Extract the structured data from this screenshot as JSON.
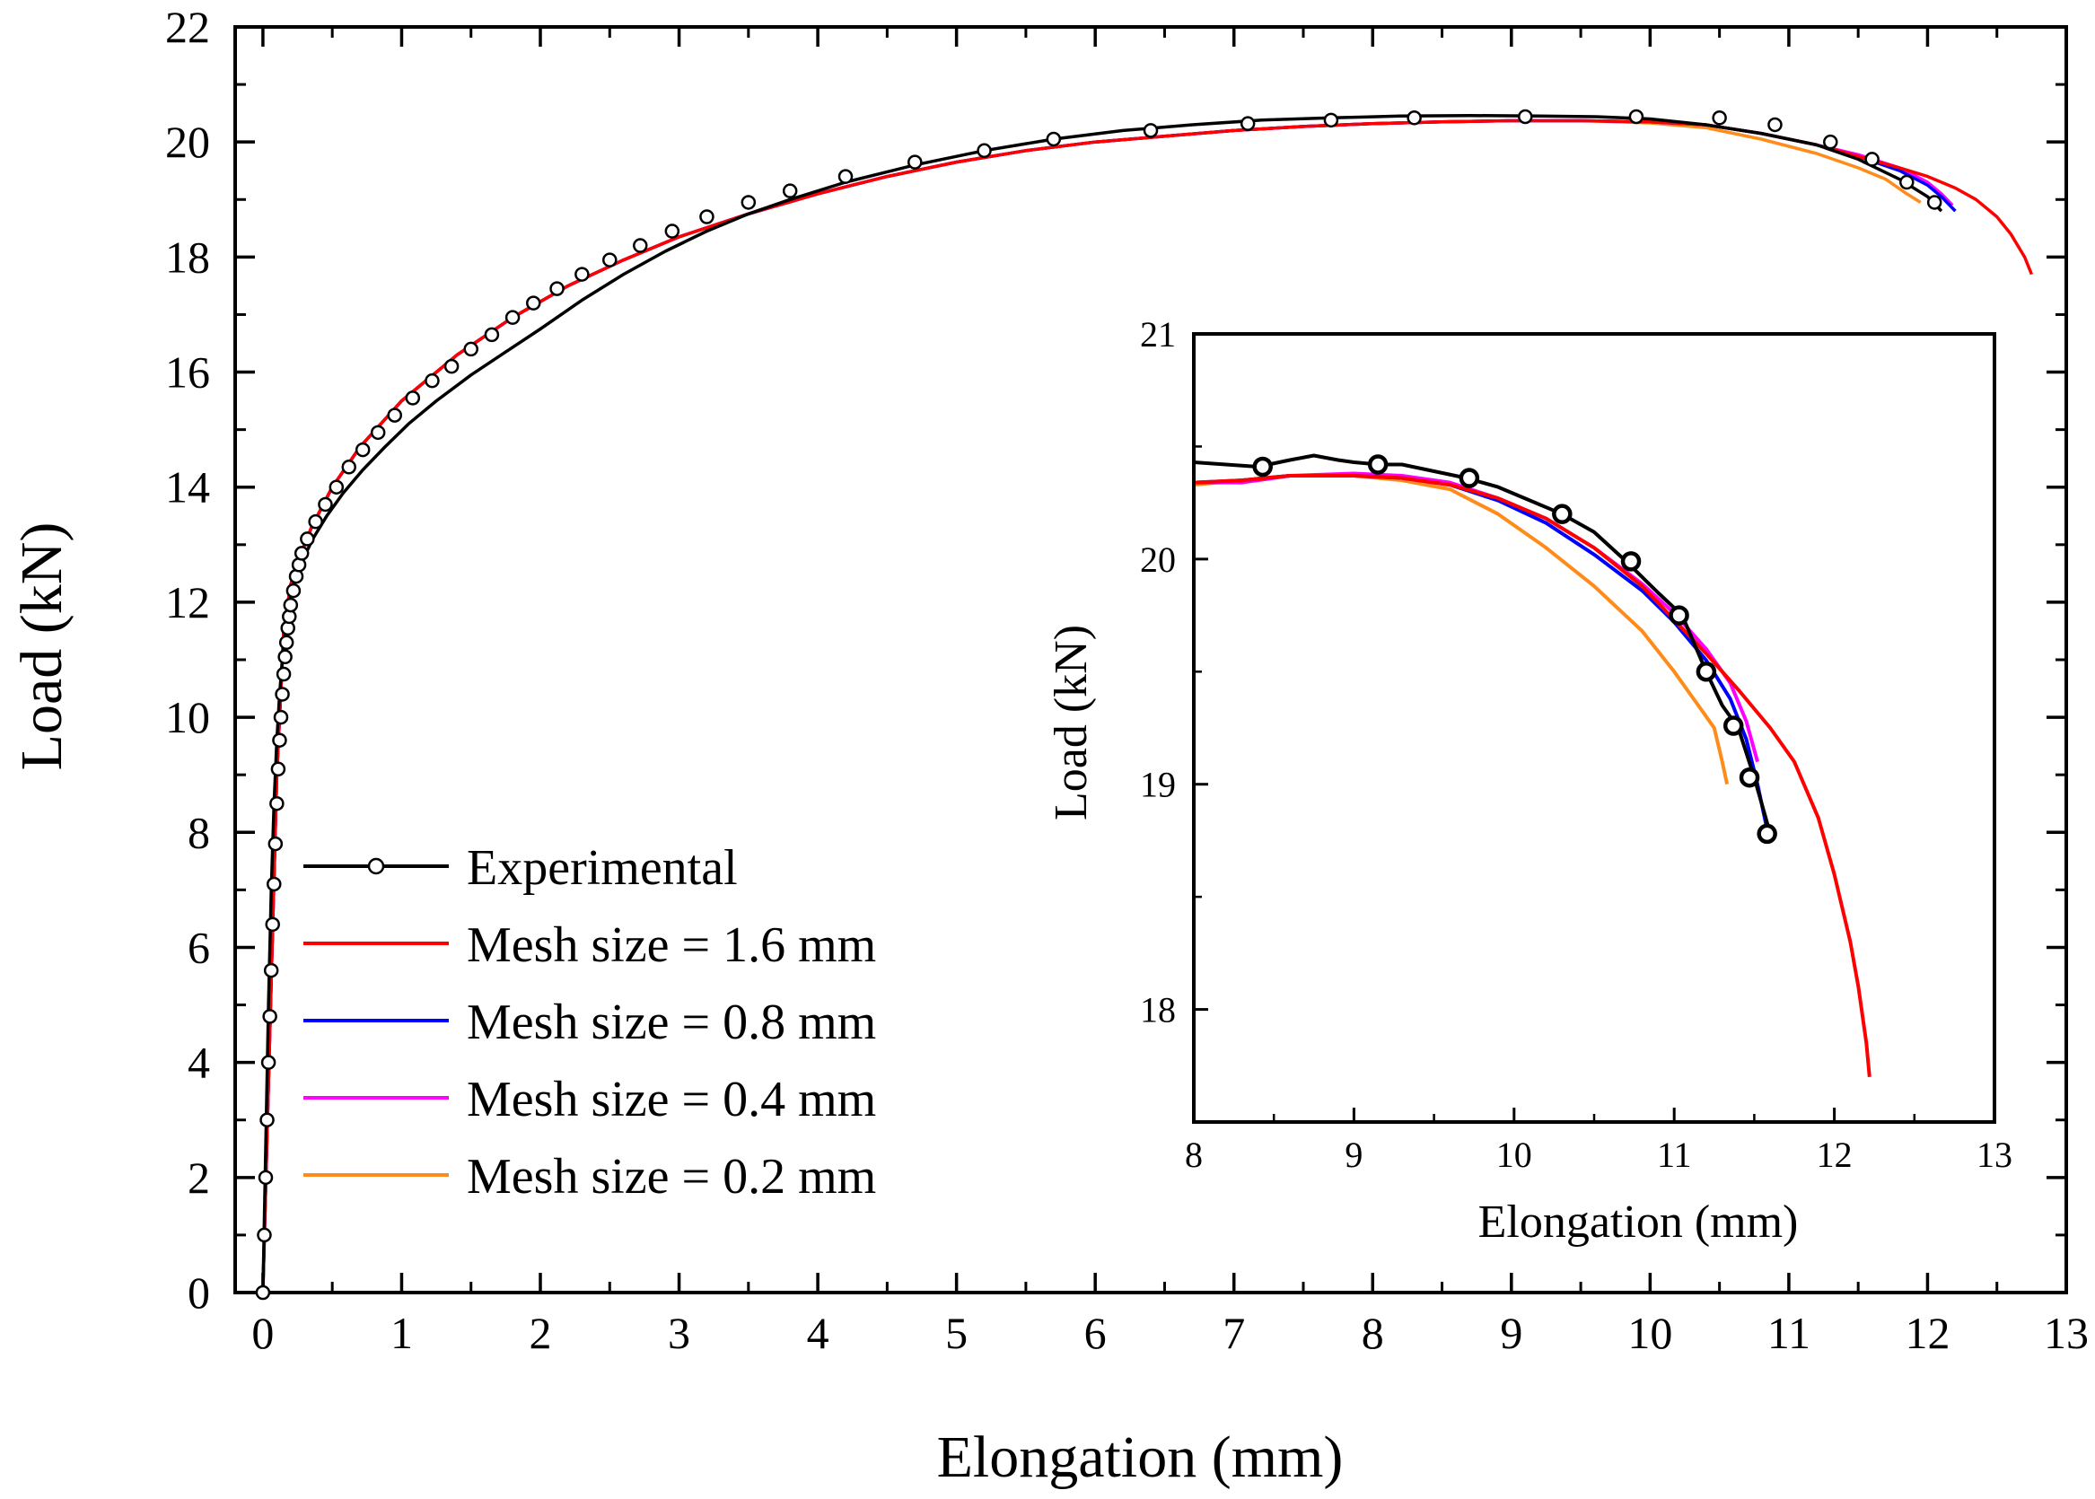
{
  "chart_data": [
    {
      "id": "main",
      "type": "line",
      "xlabel": "Elongation (mm)",
      "ylabel": "Load (kN)",
      "xlim": [
        -0.2,
        13
      ],
      "ylim": [
        0,
        22
      ],
      "xticks": [
        0,
        1,
        2,
        3,
        4,
        5,
        6,
        7,
        8,
        9,
        10,
        11,
        12,
        13
      ],
      "yticks": [
        0,
        2,
        4,
        6,
        8,
        10,
        12,
        14,
        16,
        18,
        20,
        22
      ],
      "legend_position": "bottom-left",
      "series": [
        {
          "name": "Experimental",
          "color": "#000000",
          "marker": "open-circle",
          "x": [
            0.0,
            0.02,
            0.04,
            0.06,
            0.08,
            0.1,
            0.12,
            0.14,
            0.16,
            0.18,
            0.22,
            0.28,
            0.36,
            0.46,
            0.58,
            0.72,
            0.88,
            1.05,
            1.25,
            1.5,
            1.75,
            2.0,
            2.3,
            2.6,
            2.9,
            3.2,
            3.5,
            3.8,
            4.2,
            4.7,
            5.2,
            5.7,
            6.2,
            6.7,
            7.2,
            7.7,
            8.2,
            8.7,
            9.2,
            9.6,
            10.0,
            10.4,
            10.8,
            11.2,
            11.5,
            11.8,
            12.0,
            12.1
          ],
          "y": [
            0.0,
            2.5,
            5.0,
            7.0,
            8.5,
            9.6,
            10.4,
            11.0,
            11.5,
            11.9,
            12.3,
            12.7,
            13.1,
            13.5,
            13.9,
            14.3,
            14.7,
            15.1,
            15.5,
            15.95,
            16.35,
            16.75,
            17.25,
            17.7,
            18.1,
            18.45,
            18.75,
            19.0,
            19.3,
            19.6,
            19.85,
            20.05,
            20.2,
            20.3,
            20.38,
            20.42,
            20.45,
            20.46,
            20.45,
            20.44,
            20.4,
            20.3,
            20.15,
            19.95,
            19.7,
            19.35,
            19.05,
            18.8
          ],
          "marker_x": [
            0.0,
            0.01,
            0.02,
            0.03,
            0.04,
            0.05,
            0.06,
            0.07,
            0.08,
            0.09,
            0.1,
            0.11,
            0.12,
            0.13,
            0.14,
            0.15,
            0.16,
            0.17,
            0.18,
            0.19,
            0.2,
            0.22,
            0.24,
            0.26,
            0.28,
            0.32,
            0.38,
            0.45,
            0.53,
            0.62,
            0.72,
            0.83,
            0.95,
            1.08,
            1.22,
            1.36,
            1.5,
            1.65,
            1.8,
            1.95,
            2.12,
            2.3,
            2.5,
            2.72,
            2.95,
            3.2,
            3.5,
            3.8,
            4.2,
            4.7,
            5.2,
            5.7,
            6.4,
            7.1,
            7.7,
            8.3,
            9.1,
            9.9,
            10.5,
            10.9,
            11.3,
            11.6,
            11.85,
            12.05
          ],
          "marker_y": [
            0.0,
            1.0,
            2.0,
            3.0,
            4.0,
            4.8,
            5.6,
            6.4,
            7.1,
            7.8,
            8.5,
            9.1,
            9.6,
            10.0,
            10.4,
            10.75,
            11.05,
            11.3,
            11.55,
            11.75,
            11.95,
            12.2,
            12.45,
            12.65,
            12.85,
            13.1,
            13.4,
            13.7,
            14.0,
            14.35,
            14.65,
            14.95,
            15.25,
            15.55,
            15.85,
            16.1,
            16.4,
            16.65,
            16.95,
            17.2,
            17.45,
            17.7,
            17.95,
            18.2,
            18.45,
            18.7,
            18.95,
            19.15,
            19.4,
            19.65,
            19.85,
            20.05,
            20.2,
            20.32,
            20.38,
            20.42,
            20.44,
            20.44,
            20.42,
            20.3,
            20.0,
            19.7,
            19.3,
            18.95
          ]
        },
        {
          "name": "Mesh size = 1.6 mm",
          "color": "#ff0000",
          "x": [
            0.0,
            0.05,
            0.1,
            0.15,
            0.2,
            0.25,
            0.35,
            0.5,
            0.7,
            1.0,
            1.4,
            1.8,
            2.2,
            2.6,
            3.0,
            3.5,
            4.0,
            4.5,
            5.0,
            5.5,
            6.0,
            6.5,
            7.0,
            7.5,
            8.0,
            8.5,
            9.0,
            9.5,
            10.0,
            10.4,
            10.8,
            11.2,
            11.5,
            11.8,
            12.0,
            12.2,
            12.35,
            12.5,
            12.6,
            12.7,
            12.75
          ],
          "y": [
            0.0,
            4.5,
            9.0,
            11.5,
            12.3,
            12.7,
            13.3,
            14.0,
            14.7,
            15.5,
            16.3,
            16.95,
            17.5,
            17.95,
            18.35,
            18.75,
            19.1,
            19.4,
            19.65,
            19.85,
            20.0,
            20.1,
            20.2,
            20.27,
            20.32,
            20.35,
            20.37,
            20.37,
            20.35,
            20.3,
            20.15,
            19.95,
            19.75,
            19.55,
            19.4,
            19.2,
            19.0,
            18.7,
            18.4,
            18.0,
            17.7
          ]
        },
        {
          "name": "Mesh size = 0.8 mm",
          "color": "#0000ff",
          "x": [
            0.0,
            0.05,
            0.1,
            0.15,
            0.2,
            0.25,
            0.35,
            0.5,
            0.7,
            1.0,
            1.4,
            1.8,
            2.2,
            2.6,
            3.0,
            3.5,
            4.0,
            4.5,
            5.0,
            5.5,
            6.0,
            6.5,
            7.0,
            7.5,
            8.0,
            8.5,
            9.0,
            9.5,
            10.0,
            10.4,
            10.8,
            11.2,
            11.5,
            11.8,
            12.0,
            12.1,
            12.2
          ],
          "y": [
            0.0,
            4.5,
            9.0,
            11.5,
            12.3,
            12.7,
            13.3,
            14.0,
            14.7,
            15.5,
            16.3,
            16.95,
            17.5,
            17.95,
            18.35,
            18.75,
            19.1,
            19.4,
            19.65,
            19.85,
            20.0,
            20.1,
            20.2,
            20.27,
            20.32,
            20.35,
            20.37,
            20.37,
            20.35,
            20.3,
            20.15,
            19.95,
            19.75,
            19.5,
            19.25,
            19.05,
            18.8
          ]
        },
        {
          "name": "Mesh size = 0.4 mm",
          "color": "#ff00ff",
          "x": [
            0.0,
            0.05,
            0.1,
            0.15,
            0.2,
            0.25,
            0.35,
            0.5,
            0.7,
            1.0,
            1.4,
            1.8,
            2.2,
            2.6,
            3.0,
            3.5,
            4.0,
            4.5,
            5.0,
            5.5,
            6.0,
            6.5,
            7.0,
            7.5,
            8.0,
            8.5,
            9.0,
            9.5,
            10.0,
            10.4,
            10.8,
            11.2,
            11.5,
            11.8,
            12.0,
            12.1,
            12.18
          ],
          "y": [
            0.0,
            4.5,
            9.0,
            11.5,
            12.3,
            12.7,
            13.3,
            14.0,
            14.7,
            15.5,
            16.3,
            16.95,
            17.5,
            17.95,
            18.35,
            18.75,
            19.1,
            19.4,
            19.65,
            19.85,
            20.0,
            20.1,
            20.2,
            20.27,
            20.32,
            20.35,
            20.37,
            20.37,
            20.35,
            20.3,
            20.15,
            19.95,
            19.78,
            19.55,
            19.3,
            19.1,
            18.9
          ]
        },
        {
          "name": "Mesh size = 0.2 mm",
          "color": "#ff8c1a",
          "x": [
            0.0,
            0.05,
            0.1,
            0.15,
            0.2,
            0.25,
            0.35,
            0.5,
            0.7,
            1.0,
            1.4,
            1.8,
            2.2,
            2.6,
            3.0,
            3.5,
            4.0,
            4.5,
            5.0,
            5.5,
            6.0,
            6.5,
            7.0,
            7.5,
            8.0,
            8.5,
            9.0,
            9.5,
            10.0,
            10.4,
            10.8,
            11.2,
            11.5,
            11.7,
            11.85,
            11.95
          ],
          "y": [
            0.0,
            4.5,
            9.0,
            11.5,
            12.3,
            12.7,
            13.3,
            14.0,
            14.7,
            15.5,
            16.3,
            16.95,
            17.5,
            17.95,
            18.35,
            18.75,
            19.1,
            19.4,
            19.65,
            19.85,
            20.0,
            20.1,
            20.2,
            20.27,
            20.32,
            20.35,
            20.37,
            20.37,
            20.33,
            20.25,
            20.05,
            19.8,
            19.55,
            19.35,
            19.1,
            18.95
          ]
        }
      ]
    },
    {
      "id": "inset",
      "type": "line",
      "xlabel": "Elongation (mm)",
      "ylabel": "Load (kN)",
      "xlim": [
        8,
        13
      ],
      "ylim": [
        17.5,
        21
      ],
      "xticks": [
        8,
        9,
        10,
        11,
        12,
        13
      ],
      "yticks": [
        18,
        19,
        20,
        21
      ],
      "series": [
        {
          "name": "Experimental",
          "color": "#000000",
          "marker": "open-circle",
          "x": [
            8.0,
            8.2,
            8.4,
            8.6,
            8.75,
            8.9,
            9.0,
            9.15,
            9.3,
            9.5,
            9.7,
            9.9,
            10.1,
            10.3,
            10.5,
            10.7,
            10.9,
            11.05,
            11.2,
            11.3,
            11.4,
            11.5,
            11.6
          ],
          "y": [
            20.43,
            20.42,
            20.41,
            20.44,
            20.46,
            20.44,
            20.43,
            20.42,
            20.42,
            20.39,
            20.36,
            20.32,
            20.26,
            20.2,
            20.12,
            19.99,
            19.85,
            19.75,
            19.5,
            19.35,
            19.25,
            19.03,
            18.78
          ],
          "marker_x": [
            8.43,
            9.15,
            9.72,
            10.3,
            10.73,
            11.03,
            11.2,
            11.37,
            11.47,
            11.58
          ],
          "marker_y": [
            20.41,
            20.42,
            20.36,
            20.2,
            19.99,
            19.75,
            19.5,
            19.26,
            19.03,
            18.78
          ]
        },
        {
          "name": "Mesh size = 1.6 mm",
          "color": "#ff0000",
          "x": [
            8.0,
            8.3,
            8.6,
            9.0,
            9.3,
            9.6,
            9.9,
            10.2,
            10.5,
            10.8,
            11.0,
            11.2,
            11.4,
            11.6,
            11.75,
            11.9,
            12.0,
            12.1,
            12.15,
            12.2,
            12.22
          ],
          "y": [
            20.34,
            20.35,
            20.37,
            20.37,
            20.36,
            20.33,
            20.27,
            20.18,
            20.05,
            19.88,
            19.73,
            19.58,
            19.42,
            19.25,
            19.1,
            18.85,
            18.6,
            18.3,
            18.1,
            17.85,
            17.7
          ],
          "jitter_note": ""
        },
        {
          "name": "Mesh size = 0.8 mm",
          "color": "#0000ff",
          "x": [
            8.0,
            8.3,
            8.6,
            9.0,
            9.3,
            9.6,
            9.9,
            10.2,
            10.5,
            10.8,
            11.0,
            11.2,
            11.35,
            11.45,
            11.52,
            11.58
          ],
          "y": [
            20.34,
            20.35,
            20.37,
            20.37,
            20.36,
            20.33,
            20.26,
            20.16,
            20.02,
            19.86,
            19.72,
            19.55,
            19.38,
            19.2,
            19.0,
            18.8
          ]
        },
        {
          "name": "Mesh size = 0.4 mm",
          "color": "#ff00ff",
          "x": [
            8.0,
            8.3,
            8.6,
            9.0,
            9.3,
            9.6,
            9.9,
            10.2,
            10.5,
            10.8,
            11.0,
            11.2,
            11.35,
            11.45,
            11.52
          ],
          "y": [
            20.34,
            20.34,
            20.37,
            20.38,
            20.37,
            20.34,
            20.27,
            20.18,
            20.05,
            19.89,
            19.76,
            19.6,
            19.45,
            19.28,
            19.1
          ]
        },
        {
          "name": "Mesh size = 0.2 mm",
          "color": "#ff8c1a",
          "x": [
            8.0,
            8.3,
            8.6,
            9.0,
            9.3,
            9.6,
            9.9,
            10.2,
            10.5,
            10.8,
            11.0,
            11.15,
            11.25,
            11.3,
            11.33
          ],
          "y": [
            20.33,
            20.35,
            20.37,
            20.37,
            20.35,
            20.31,
            20.2,
            20.05,
            19.88,
            19.68,
            19.5,
            19.35,
            19.25,
            19.1,
            19.0
          ]
        }
      ]
    }
  ]
}
